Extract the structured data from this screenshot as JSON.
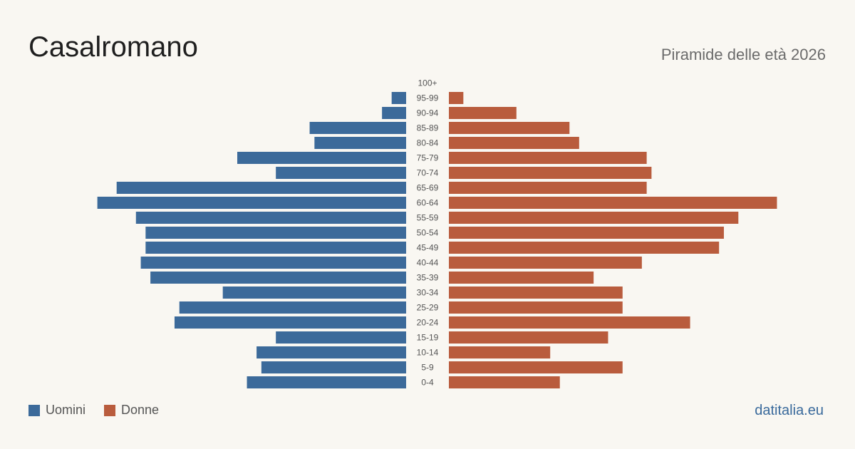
{
  "header": {
    "title": "Casalromano",
    "subtitle": "Piramide delle età 2026"
  },
  "legend": {
    "men_label": "Uomini",
    "women_label": "Donne"
  },
  "source": "datitalia.eu",
  "colors": {
    "men": "#3c6a9a",
    "women": "#b95c3d",
    "background": "#f9f7f2",
    "label": "#555555"
  },
  "chart_data": {
    "type": "bar",
    "orientation": "horizontal-pyramid",
    "categories": [
      "100+",
      "95-99",
      "90-94",
      "85-89",
      "80-84",
      "75-79",
      "70-74",
      "65-69",
      "60-64",
      "55-59",
      "50-54",
      "45-49",
      "40-44",
      "35-39",
      "30-34",
      "25-29",
      "20-24",
      "15-19",
      "10-14",
      "5-9",
      "0-4"
    ],
    "series": [
      {
        "name": "Uomini",
        "values": [
          0,
          3,
          5,
          20,
          19,
          35,
          27,
          60,
          64,
          56,
          54,
          54,
          55,
          53,
          38,
          47,
          48,
          27,
          31,
          30,
          33
        ]
      },
      {
        "name": "Donne",
        "values": [
          0,
          3,
          14,
          25,
          27,
          41,
          42,
          41,
          68,
          60,
          57,
          56,
          40,
          30,
          36,
          36,
          50,
          33,
          21,
          36,
          23
        ]
      }
    ],
    "xlim": [
      0,
      70
    ],
    "legend_position": "bottom-left",
    "grid": false
  }
}
